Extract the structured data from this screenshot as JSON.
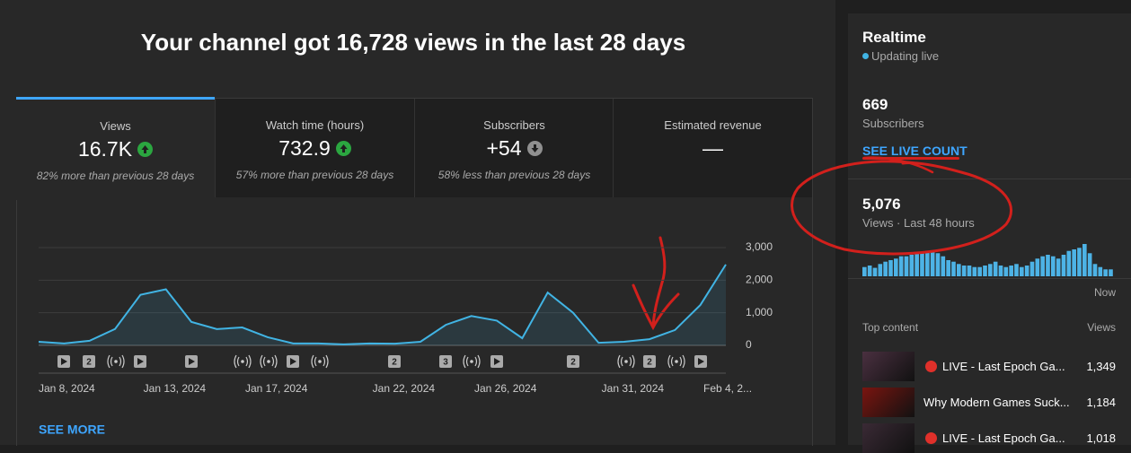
{
  "header": {
    "title": "Your channel got 16,728 views in the last 28 days"
  },
  "metrics": [
    {
      "label": "Views",
      "value": "16.7K",
      "note": "82% more than previous 28 days"
    },
    {
      "label": "Watch time (hours)",
      "value": "732.9",
      "note": "57% more than previous 28 days"
    },
    {
      "label": "Subscribers",
      "value": "+54",
      "note": "58% less than previous 28 days"
    },
    {
      "label": "Estimated revenue",
      "value": "—"
    }
  ],
  "chart_data": {
    "type": "line",
    "x": [
      "Jan 8, 2024",
      null,
      null,
      null,
      null,
      "Jan 13, 2024",
      null,
      null,
      null,
      "Jan 17, 2024",
      null,
      null,
      null,
      null,
      "Jan 22, 2024",
      null,
      null,
      null,
      "Jan 26, 2024",
      null,
      null,
      null,
      null,
      "Jan 31, 2024",
      null,
      null,
      null,
      "Feb 4, 2..."
    ],
    "values": [
      110,
      60,
      140,
      500,
      1550,
      1720,
      720,
      500,
      550,
      250,
      60,
      60,
      30,
      60,
      50,
      110,
      630,
      900,
      760,
      220,
      1620,
      1000,
      80,
      110,
      190,
      470,
      1240,
      2480
    ],
    "ylim": [
      0,
      3000
    ],
    "yticks": [
      0,
      {
        "value": 1000,
        "label": "1,000"
      },
      {
        "value": 2000,
        "label": "2,000"
      },
      {
        "value": 3000,
        "label": "3,000"
      }
    ],
    "color": "#41b4e4",
    "grid": true
  },
  "event_badges": [
    "2",
    "2",
    "3",
    "2",
    "2"
  ],
  "see_more": "SEE MORE",
  "realtime": {
    "title": "Realtime",
    "status": "Updating live",
    "subscribers": "669",
    "subscribers_label": "Subscribers",
    "live_count": "SEE LIVE COUNT",
    "views": "5,076",
    "views_label": "Views · Last 48 hours",
    "chart": {
      "type": "bar",
      "color": "#4db3e6",
      "values": [
        60,
        70,
        55,
        80,
        95,
        105,
        115,
        130,
        130,
        140,
        150,
        150,
        165,
        165,
        150,
        130,
        105,
        95,
        80,
        70,
        70,
        60,
        60,
        70,
        80,
        95,
        70,
        60,
        70,
        80,
        60,
        70,
        95,
        115,
        130,
        140,
        130,
        115,
        140,
        165,
        175,
        185,
        210,
        150,
        80,
        60,
        45,
        45
      ]
    },
    "now": "Now",
    "top_content_label": "Top content",
    "views_header": "Views",
    "top_content": [
      {
        "title": "LIVE - Last Epoch Ga...",
        "views": "1,349"
      },
      {
        "title": "Why Modern Games Suck...",
        "views": "1,184"
      },
      {
        "title": "LIVE - Last Epoch Ga...",
        "views": "1,018"
      }
    ]
  }
}
